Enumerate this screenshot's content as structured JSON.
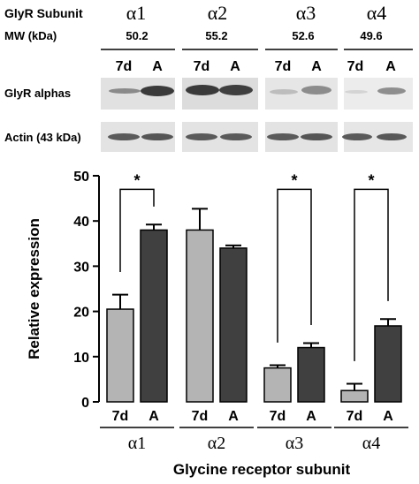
{
  "blot": {
    "header_label": "GlyR Subunit",
    "mw_label": "MW  (kDa)",
    "subunits": [
      "α1",
      "α2",
      "α3",
      "α4"
    ],
    "mw_values": [
      "50.2",
      "55.2",
      "52.6",
      "49.6"
    ],
    "lane_labels": [
      "7d",
      "A"
    ],
    "row_labels": [
      "GlyR alphas",
      "Actin (43 kDa)"
    ]
  },
  "chart_data": {
    "type": "bar",
    "title": "",
    "xlabel": "Glycine receptor subunit",
    "ylabel": "Relative expression",
    "ylim": [
      0,
      50
    ],
    "yticks": [
      0,
      10,
      20,
      30,
      40,
      50
    ],
    "categories": [
      "α1",
      "α2",
      "α3",
      "α4"
    ],
    "group_labels": [
      "7d",
      "A"
    ],
    "series": [
      {
        "values": [
          20.5,
          38.0,
          7.5,
          2.5
        ],
        "errors": [
          3.2,
          4.7,
          0.6,
          1.5
        ],
        "color": "#b4b4b4"
      },
      {
        "values": [
          38.0,
          34.0,
          12.0,
          16.8
        ],
        "errors": [
          1.2,
          0.6,
          1.0,
          1.5
        ],
        "color": "#404040"
      }
    ],
    "significance": [
      {
        "category": "α1",
        "label": "*"
      },
      {
        "category": "α3",
        "label": "*"
      },
      {
        "category": "α4",
        "label": "*"
      }
    ]
  }
}
